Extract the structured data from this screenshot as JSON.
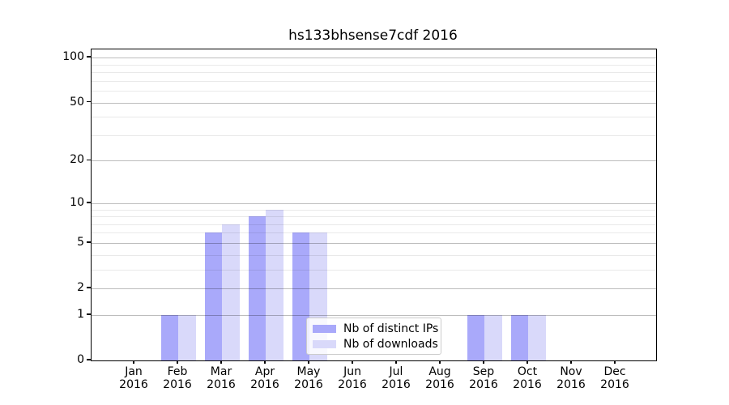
{
  "chart_data": {
    "type": "bar",
    "title": "hs133bhsense7cdf 2016",
    "categories": [
      "Jan",
      "Feb",
      "Mar",
      "Apr",
      "May",
      "Jun",
      "Jul",
      "Aug",
      "Sep",
      "Oct",
      "Nov",
      "Dec"
    ],
    "xtick_sublabel": "2016",
    "series": [
      {
        "name": "Nb of distinct IPs",
        "color": "#a9a9fa",
        "values": [
          0,
          1,
          6,
          8,
          6,
          0,
          0,
          0,
          1,
          1,
          0,
          0
        ]
      },
      {
        "name": "Nb of downloads",
        "color": "#d9d9fa",
        "values": [
          0,
          1,
          7,
          9,
          6,
          0,
          0,
          0,
          1,
          1,
          0,
          0
        ]
      }
    ],
    "yscale": "log1p",
    "yticks": [
      0,
      1,
      2,
      5,
      10,
      20,
      50,
      100
    ],
    "minor_gridlines": [
      3,
      4,
      6,
      7,
      8,
      9,
      30,
      40,
      60,
      70,
      80,
      90
    ],
    "ylim": [
      0,
      113
    ],
    "grid": "on",
    "legend_position": "lower-center"
  },
  "colors": {
    "distinct_ips": "#a9a9fa",
    "downloads": "#d9d9fa",
    "spine": "#000000",
    "background": "#ffffff"
  }
}
